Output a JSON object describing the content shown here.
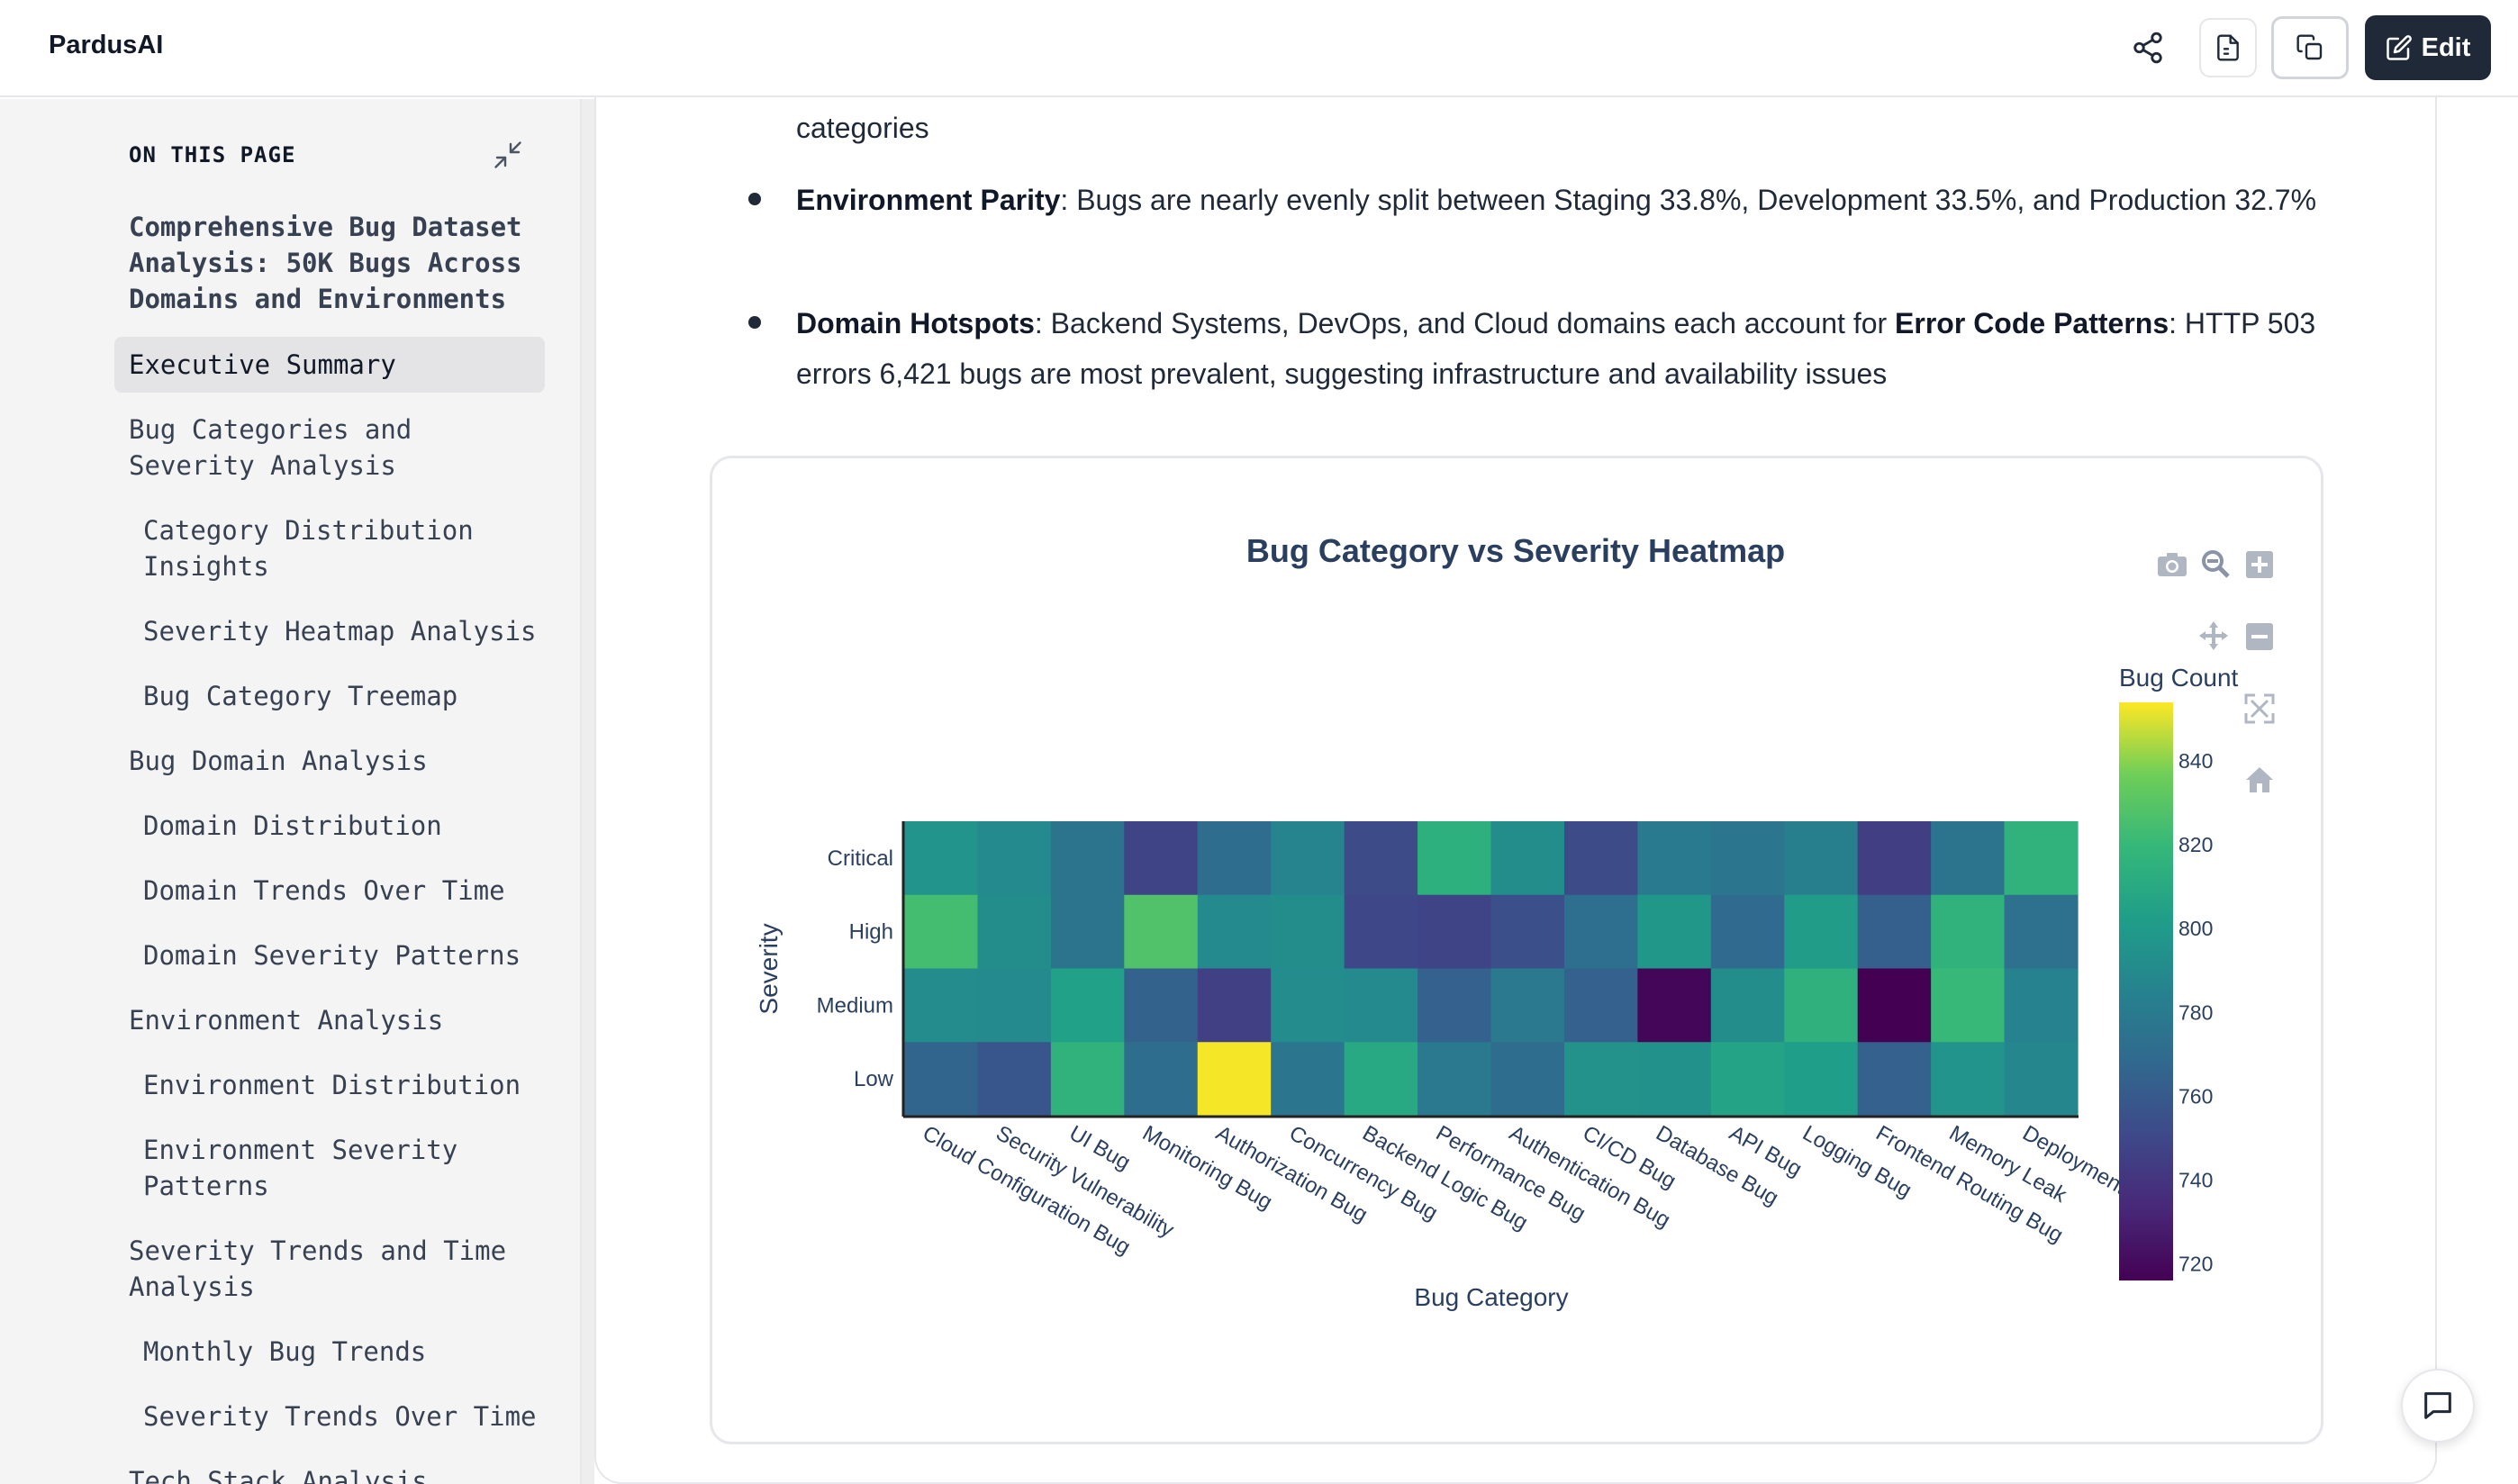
{
  "app": {
    "name": "PardusAI"
  },
  "toolbar": {
    "edit_label": "Edit",
    "icons": [
      "share-icon",
      "document-icon",
      "copy-icon",
      "edit-icon"
    ]
  },
  "toc": {
    "header": "ON THIS PAGE",
    "title": "Comprehensive Bug Dataset Analysis: 50K Bugs Across Domains and Environments",
    "items": [
      {
        "label": "Executive Summary",
        "level": 1,
        "active": true
      },
      {
        "label": "Bug Categories and Severity Analysis",
        "level": 1
      },
      {
        "label": "Category Distribution Insights",
        "level": 2
      },
      {
        "label": "Severity Heatmap Analysis",
        "level": 2
      },
      {
        "label": "Bug Category Treemap",
        "level": 2
      },
      {
        "label": "Bug Domain Analysis",
        "level": 1
      },
      {
        "label": "Domain Distribution",
        "level": 2
      },
      {
        "label": "Domain Trends Over Time",
        "level": 2
      },
      {
        "label": "Domain Severity Patterns",
        "level": 2
      },
      {
        "label": "Environment Analysis",
        "level": 1
      },
      {
        "label": "Environment Distribution",
        "level": 2
      },
      {
        "label": "Environment Severity Patterns",
        "level": 2
      },
      {
        "label": "Severity Trends and Time Analysis",
        "level": 1
      },
      {
        "label": "Monthly Bug Trends",
        "level": 2
      },
      {
        "label": "Severity Trends Over Time",
        "level": 2
      },
      {
        "label": "Tech Stack Analysis",
        "level": 1
      }
    ]
  },
  "content": {
    "partial_line": "categories",
    "bullets": [
      {
        "lead": "Environment Parity",
        "text": ": Bugs are nearly evenly split between Staging 33.8%, Development 33.5%, and Production 32.7%"
      },
      {
        "lead": "Domain Hotspots",
        "text": ": Backend Systems, DevOps, and Cloud domains each account for ",
        "lead2": "Error Code Patterns",
        "text2": ": HTTP 503 errors 6,421 bugs are most prevalent, suggesting infrastructure and availability issues"
      }
    ]
  },
  "chart_data": {
    "type": "heatmap",
    "title": "Bug Category vs Severity Heatmap",
    "xlabel": "Bug Category",
    "ylabel": "Severity",
    "colorbar_title": "Bug Count",
    "colorscale": "viridis",
    "zmin": 716,
    "zmax": 854,
    "colorbar_ticks": [
      720,
      740,
      760,
      780,
      800,
      820,
      840
    ],
    "categories": [
      "Cloud Configuration Bug",
      "Security Vulnerability",
      "UI Bug",
      "Monitoring Bug",
      "Authorization Bug",
      "Concurrency Bug",
      "Backend Logic Bug",
      "Performance Bug",
      "Authentication Bug",
      "CI/CD Bug",
      "Database Bug",
      "API Bug",
      "Logging Bug",
      "Frontend Routing Bug",
      "Memory Leak",
      "Deployment Bug"
    ],
    "severities": [
      "Critical",
      "High",
      "Medium",
      "Low"
    ],
    "values": [
      [
        796,
        790,
        775,
        748,
        771,
        786,
        752,
        814,
        792,
        752,
        780,
        777,
        783,
        745,
        776,
        816
      ],
      [
        824,
        792,
        776,
        828,
        790,
        792,
        750,
        748,
        754,
        772,
        798,
        769,
        801,
        763,
        816,
        774
      ],
      [
        791,
        790,
        804,
        765,
        746,
        791,
        790,
        764,
        779,
        764,
        718,
        792,
        815,
        716,
        820,
        785
      ],
      [
        766,
        758,
        816,
        771,
        853,
        777,
        809,
        779,
        771,
        795,
        794,
        806,
        802,
        764,
        796,
        788
      ]
    ]
  },
  "modebar": {
    "icons": [
      "camera-icon",
      "zoom-icon",
      "zoom-in-icon",
      "pan-icon",
      "zoom-out-icon",
      "autoscale-icon",
      "reset-axes-icon"
    ]
  }
}
